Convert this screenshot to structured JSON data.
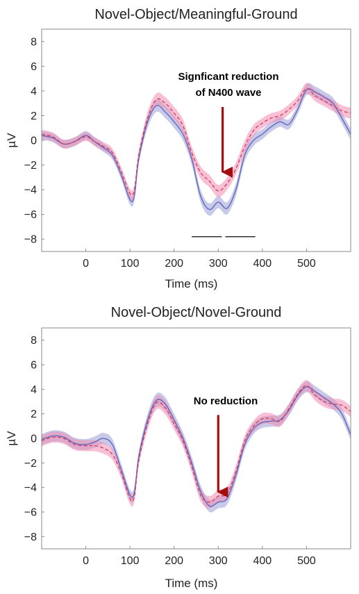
{
  "chart_data": [
    {
      "type": "line",
      "title": "Novel-Object/Meaningful-Ground",
      "xlabel": "Time (ms)",
      "ylabel": "µV",
      "xlim": [
        -100,
        600
      ],
      "ylim": [
        -9,
        9
      ],
      "xticks": [
        "0",
        "100",
        "200",
        "300",
        "400",
        "500"
      ],
      "yticks": [
        "8",
        "6",
        "4",
        "2",
        "0",
        "−2",
        "−4",
        "−6",
        "−8"
      ],
      "x": [
        -100,
        -75,
        -50,
        -25,
        0,
        20,
        40,
        60,
        80,
        100,
        110,
        120,
        140,
        160,
        180,
        200,
        220,
        240,
        260,
        280,
        300,
        320,
        340,
        360,
        380,
        400,
        420,
        440,
        460,
        480,
        500,
        520,
        540,
        560,
        580,
        600
      ],
      "series": [
        {
          "color": "#5b62b8",
          "style": "solid",
          "band_color": "#9b9ed8",
          "values": [
            0.4,
            0.2,
            -0.3,
            -0.1,
            0.4,
            -0.1,
            -0.6,
            -1.2,
            -2.8,
            -4.8,
            -4.5,
            -1.5,
            1.5,
            2.8,
            2.3,
            1.5,
            0.5,
            -1.5,
            -4.5,
            -5.6,
            -5.0,
            -5.5,
            -4.0,
            -1.2,
            0.0,
            0.5,
            1.1,
            1.5,
            1.3,
            2.5,
            4.1,
            3.9,
            3.5,
            3.0,
            1.8,
            0.5
          ],
          "band": [
            0.35,
            0.35,
            0.35,
            0.35,
            0.35,
            0.35,
            0.35,
            0.35,
            0.35,
            0.4,
            0.4,
            0.4,
            0.5,
            0.5,
            0.5,
            0.5,
            0.5,
            0.5,
            0.5,
            0.5,
            0.5,
            0.5,
            0.5,
            0.5,
            0.45,
            0.4,
            0.4,
            0.4,
            0.4,
            0.4,
            0.45,
            0.45,
            0.45,
            0.45,
            0.45,
            0.45
          ]
        },
        {
          "color": "#d23c5a",
          "style": "dashed",
          "band_color": "#f08cb0",
          "values": [
            0.5,
            0.3,
            -0.3,
            -0.1,
            0.3,
            -0.1,
            -0.5,
            -1.0,
            -2.5,
            -4.3,
            -4.0,
            -1.2,
            1.8,
            3.3,
            3.0,
            2.2,
            1.2,
            -1.0,
            -2.6,
            -3.3,
            -4.1,
            -3.5,
            -2.3,
            -0.5,
            0.8,
            1.4,
            1.8,
            2.0,
            2.5,
            3.2,
            4.2,
            3.6,
            3.2,
            2.8,
            2.4,
            2.2
          ],
          "band": [
            0.35,
            0.35,
            0.35,
            0.35,
            0.35,
            0.35,
            0.35,
            0.35,
            0.35,
            0.4,
            0.4,
            0.4,
            0.5,
            0.5,
            0.5,
            0.5,
            0.5,
            0.5,
            0.5,
            0.5,
            0.5,
            0.5,
            0.5,
            0.5,
            0.45,
            0.4,
            0.4,
            0.4,
            0.4,
            0.4,
            0.45,
            0.45,
            0.45,
            0.45,
            0.45,
            0.45
          ]
        }
      ],
      "significance_bars": [
        [
          240,
          308
        ],
        [
          316,
          384
        ]
      ],
      "significance_level": -7.8,
      "annotation": {
        "text": [
          "Signficant reduction",
          "of N400 wave"
        ],
        "arrow_x": 310,
        "arrow_y_from": 2.7,
        "arrow_y_to": -2.8
      }
    },
    {
      "type": "line",
      "title": "Novel-Object/Novel-Ground",
      "xlabel": "Time (ms)",
      "ylabel": "µV",
      "xlim": [
        -100,
        600
      ],
      "ylim": [
        -9,
        9
      ],
      "xticks": [
        "0",
        "100",
        "200",
        "300",
        "400",
        "500"
      ],
      "yticks": [
        "8",
        "6",
        "4",
        "2",
        "0",
        "−2",
        "−4",
        "−6",
        "−8"
      ],
      "x": [
        -100,
        -75,
        -50,
        -25,
        0,
        20,
        40,
        60,
        80,
        100,
        110,
        120,
        140,
        160,
        180,
        200,
        220,
        240,
        260,
        280,
        300,
        320,
        340,
        360,
        380,
        400,
        420,
        440,
        460,
        480,
        500,
        520,
        540,
        560,
        580,
        600
      ],
      "series": [
        {
          "color": "#5b62b8",
          "style": "solid",
          "band_color": "#9b9ed8",
          "values": [
            -0.1,
            0.2,
            0.1,
            -0.4,
            -0.5,
            -0.3,
            0.0,
            -0.5,
            -2.5,
            -4.6,
            -4.4,
            -1.5,
            1.5,
            3.1,
            2.8,
            1.5,
            0.0,
            -2.0,
            -4.3,
            -5.5,
            -5.2,
            -4.9,
            -3.0,
            -0.5,
            0.8,
            1.3,
            1.4,
            1.5,
            2.3,
            3.5,
            4.2,
            3.8,
            3.3,
            2.8,
            2.0,
            0.3
          ],
          "band": [
            0.45,
            0.45,
            0.45,
            0.45,
            0.45,
            0.45,
            0.45,
            0.45,
            0.45,
            0.45,
            0.45,
            0.45,
            0.5,
            0.55,
            0.55,
            0.5,
            0.5,
            0.5,
            0.5,
            0.5,
            0.5,
            0.5,
            0.5,
            0.45,
            0.45,
            0.45,
            0.45,
            0.45,
            0.45,
            0.45,
            0.45,
            0.45,
            0.45,
            0.45,
            0.45,
            0.45
          ]
        },
        {
          "color": "#d23c5a",
          "style": "dashed",
          "band_color": "#f08cb0",
          "values": [
            -0.2,
            0.1,
            0.0,
            -0.5,
            -0.6,
            -0.6,
            -0.8,
            -1.3,
            -2.8,
            -4.9,
            -4.7,
            -1.8,
            1.2,
            2.9,
            2.5,
            1.2,
            -0.2,
            -2.3,
            -4.6,
            -5.2,
            -4.7,
            -4.5,
            -2.7,
            -0.2,
            1.0,
            1.6,
            1.6,
            1.4,
            2.4,
            3.6,
            4.3,
            3.5,
            3.0,
            2.8,
            2.7,
            2.2
          ],
          "band": [
            0.45,
            0.45,
            0.45,
            0.45,
            0.45,
            0.45,
            0.45,
            0.45,
            0.45,
            0.45,
            0.45,
            0.45,
            0.5,
            0.55,
            0.55,
            0.5,
            0.5,
            0.5,
            0.5,
            0.5,
            0.5,
            0.5,
            0.5,
            0.45,
            0.45,
            0.45,
            0.45,
            0.45,
            0.45,
            0.45,
            0.45,
            0.45,
            0.45,
            0.45,
            0.45,
            0.45
          ]
        }
      ],
      "significance_bars": [],
      "annotation": {
        "text": [
          "No reduction"
        ],
        "arrow_x": 300,
        "arrow_y_from": 1.9,
        "arrow_y_to": -4.6
      }
    }
  ]
}
